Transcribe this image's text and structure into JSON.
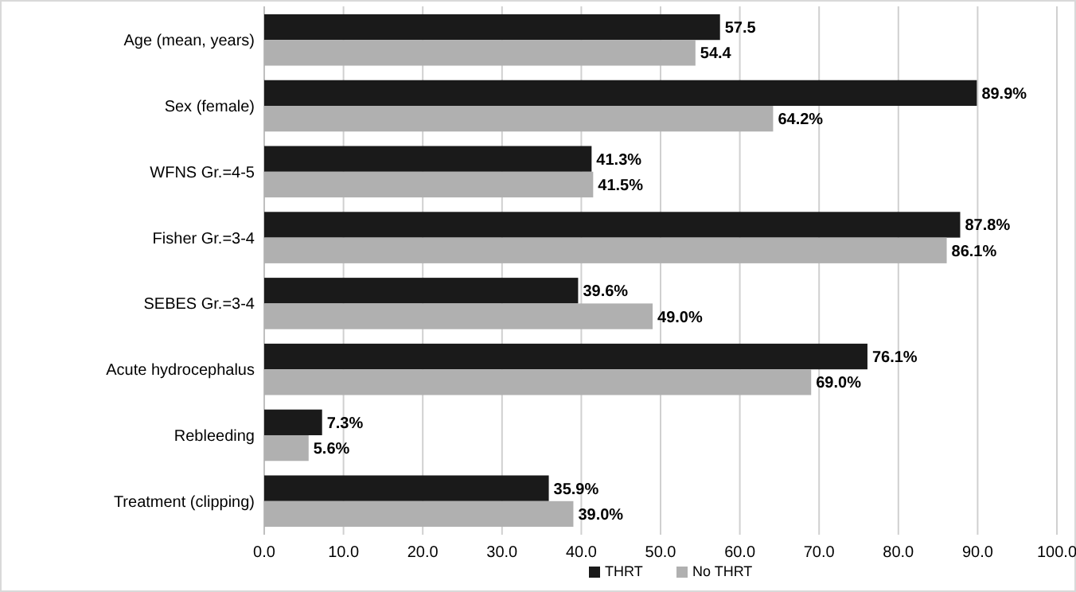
{
  "chart_data": {
    "type": "bar",
    "orientation": "horizontal",
    "categories": [
      "Age (mean, years)",
      "Sex (female)",
      "WFNS Gr.=4-5",
      "Fisher Gr.=3-4",
      "SEBES Gr.=3-4",
      "Acute hydrocephalus",
      "Rebleeding",
      "Treatment (clipping)"
    ],
    "series": [
      {
        "name": "THRT",
        "color": "#1a1a1a",
        "values": [
          57.5,
          89.9,
          41.3,
          87.8,
          39.6,
          76.1,
          7.3,
          35.9
        ],
        "value_labels": [
          "57.5",
          "89.9%",
          "41.3%",
          "87.8%",
          "39.6%",
          "76.1%",
          "7.3%",
          "35.9%"
        ]
      },
      {
        "name": "No THRT",
        "color": "#b0b0b0",
        "values": [
          54.4,
          64.2,
          41.5,
          86.1,
          49.0,
          69.0,
          5.6,
          39.0
        ],
        "value_labels": [
          "54.4",
          "64.2%",
          "41.5%",
          "86.1%",
          "49.0%",
          "69.0%",
          "5.6%",
          "39.0%"
        ]
      }
    ],
    "xlim": [
      0,
      100
    ],
    "xticks": [
      {
        "value": 0,
        "label": "0.0"
      },
      {
        "value": 10,
        "label": "10.0"
      },
      {
        "value": 20,
        "label": "20.0"
      },
      {
        "value": 30,
        "label": "30.0"
      },
      {
        "value": 40,
        "label": "40.0"
      },
      {
        "value": 50,
        "label": "50.0"
      },
      {
        "value": 60,
        "label": "60.0"
      },
      {
        "value": 70,
        "label": "70.0"
      },
      {
        "value": 80,
        "label": "80.0"
      },
      {
        "value": 90,
        "label": "90.0"
      },
      {
        "value": 100,
        "label": "100.0"
      }
    ],
    "grid": "x",
    "legend": "bottom"
  }
}
